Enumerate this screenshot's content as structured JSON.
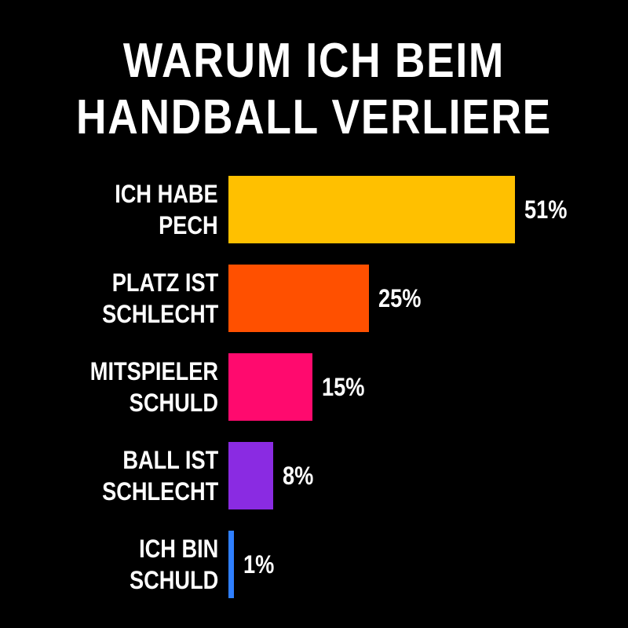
{
  "chart_data": {
    "type": "bar",
    "orientation": "horizontal",
    "title": "WARUM ICH BEIM\nHANDBALL VERLIERE",
    "categories": [
      "ICH HABE\nPECH",
      "PLATZ IST\nSCHLECHT",
      "MITSPIELER\nSCHULD",
      "BALL IST\nSCHLECHT",
      "ICH BIN\nSCHULD"
    ],
    "values": [
      51,
      25,
      15,
      8,
      1
    ],
    "value_labels": [
      "51%",
      "25%",
      "15%",
      "8%",
      "1%"
    ],
    "colors": [
      "#ffc000",
      "#ff5000",
      "#ff0a6e",
      "#8a2be2",
      "#2f7fff"
    ],
    "xlim": [
      0,
      51
    ]
  }
}
